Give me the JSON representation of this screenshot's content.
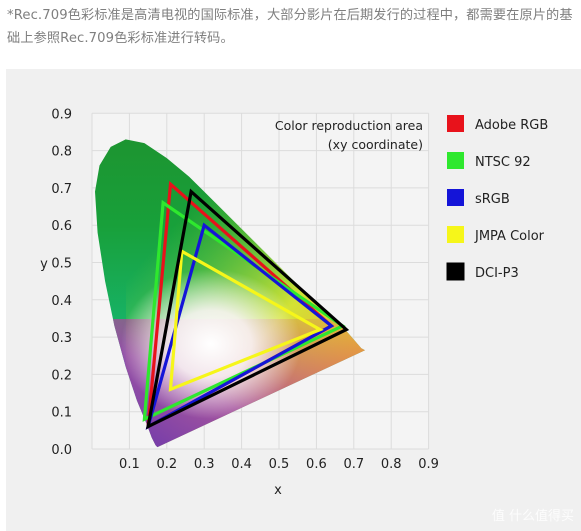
{
  "caption": "*Rec.709色彩标准是高清电视的国际标准，大部分影片在后期发行的过程中，都需要在原片的基础上参照Rec.709色彩标准进行转码。",
  "watermark": "值 什么值得买",
  "chart_data": {
    "type": "scatter",
    "title": "",
    "xlabel": "x",
    "ylabel": "y",
    "xlim": [
      0,
      0.9
    ],
    "ylim": [
      0,
      0.9
    ],
    "xticks": [
      "0.1",
      "0.2",
      "0.3",
      "0.4",
      "0.5",
      "0.6",
      "0.7",
      "0.8",
      "0.9"
    ],
    "yticks": [
      "0.0",
      "0.1",
      "0.2",
      "0.3",
      "0.4",
      "0.5",
      "0.6",
      "0.7",
      "0.8",
      "0.9"
    ],
    "grid": true,
    "annotation": [
      "Color reproduction area",
      "(xy coordinate)"
    ],
    "legend_position": "right",
    "spectral_locus": [
      [
        0.175,
        0.005
      ],
      [
        0.17,
        0.01
      ],
      [
        0.16,
        0.03
      ],
      [
        0.145,
        0.07
      ],
      [
        0.12,
        0.13
      ],
      [
        0.09,
        0.22
      ],
      [
        0.06,
        0.33
      ],
      [
        0.035,
        0.45
      ],
      [
        0.015,
        0.58
      ],
      [
        0.008,
        0.69
      ],
      [
        0.02,
        0.76
      ],
      [
        0.05,
        0.81
      ],
      [
        0.09,
        0.83
      ],
      [
        0.14,
        0.82
      ],
      [
        0.2,
        0.78
      ],
      [
        0.26,
        0.73
      ],
      [
        0.33,
        0.66
      ],
      [
        0.4,
        0.59
      ],
      [
        0.47,
        0.52
      ],
      [
        0.54,
        0.45
      ],
      [
        0.6,
        0.39
      ],
      [
        0.66,
        0.34
      ],
      [
        0.72,
        0.27
      ],
      [
        0.73,
        0.265
      ]
    ],
    "series": [
      {
        "name": "Adobe RGB",
        "color": "#e8121b",
        "points": [
          [
            0.64,
            0.33
          ],
          [
            0.21,
            0.71
          ],
          [
            0.15,
            0.06
          ]
        ]
      },
      {
        "name": "NTSC 92",
        "color": "#2ee82e",
        "points": [
          [
            0.67,
            0.33
          ],
          [
            0.19,
            0.66
          ],
          [
            0.14,
            0.08
          ]
        ]
      },
      {
        "name": "sRGB",
        "color": "#1414d8",
        "points": [
          [
            0.64,
            0.33
          ],
          [
            0.3,
            0.6
          ],
          [
            0.15,
            0.06
          ]
        ]
      },
      {
        "name": "JMPA Color",
        "color": "#f6f61a",
        "points": [
          [
            0.61,
            0.32
          ],
          [
            0.24,
            0.53
          ],
          [
            0.21,
            0.16
          ]
        ]
      },
      {
        "name": "DCI-P3",
        "color": "#000000",
        "points": [
          [
            0.68,
            0.32
          ],
          [
            0.265,
            0.69
          ],
          [
            0.15,
            0.06
          ]
        ]
      }
    ]
  }
}
